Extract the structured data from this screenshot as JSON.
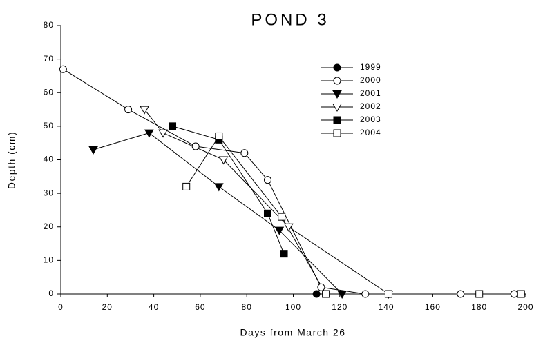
{
  "chart_data": {
    "type": "line",
    "title": "POND 3",
    "x_label": "Days from March 26",
    "y_label": "Depth (cm)",
    "xlim": [
      0,
      200
    ],
    "xticks": [
      0,
      20,
      40,
      60,
      80,
      100,
      120,
      140,
      160,
      180,
      200
    ],
    "ylim": [
      0,
      80
    ],
    "yticks": [
      0,
      10,
      20,
      30,
      40,
      50,
      60,
      70,
      80
    ],
    "legend": "upper right",
    "series": [
      {
        "name": "1999",
        "color": "#000000",
        "marker": "circle",
        "filled": true,
        "x": [
          110
        ],
        "values": [
          0
        ]
      },
      {
        "name": "2000",
        "color": "#000000",
        "marker": "circle",
        "filled": false,
        "x": [
          1,
          29,
          58,
          79,
          89,
          112,
          131,
          172,
          195
        ],
        "values": [
          67,
          55,
          44,
          42,
          34,
          2,
          0,
          0,
          0
        ]
      },
      {
        "name": "2001",
        "color": "#000000",
        "marker": "triangle-down",
        "filled": true,
        "x": [
          14,
          38,
          68,
          94,
          121
        ],
        "values": [
          43,
          48,
          32,
          19,
          0
        ]
      },
      {
        "name": "2002",
        "color": "#000000",
        "marker": "triangle-down",
        "filled": false,
        "x": [
          36,
          44,
          70,
          98,
          141
        ],
        "values": [
          55,
          48,
          40,
          20,
          0
        ]
      },
      {
        "name": "2003",
        "color": "#000000",
        "marker": "square",
        "filled": true,
        "x": [
          48,
          68,
          89,
          96
        ],
        "values": [
          50,
          46,
          24,
          12
        ]
      },
      {
        "name": "2004",
        "color": "#000000",
        "marker": "square",
        "filled": false,
        "x": [
          54,
          68,
          95,
          114,
          141,
          180,
          198
        ],
        "values": [
          32,
          47,
          23,
          0,
          0,
          0,
          0
        ]
      }
    ]
  }
}
